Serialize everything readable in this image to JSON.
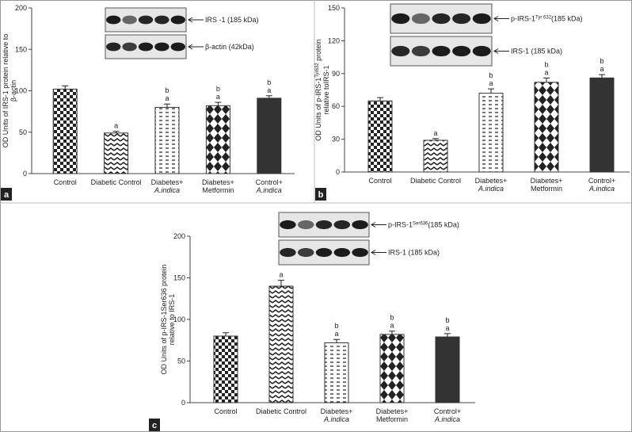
{
  "chart_data": [
    {
      "type": "bar",
      "panel": "a",
      "ylabel": [
        [
          {
            "text": "OD Units of IRS-1 protein relative to"
          }
        ],
        [
          {
            "text": "β-actin"
          }
        ]
      ],
      "categories": [
        [
          "Control"
        ],
        [
          "Diabetic Control"
        ],
        [
          "Diabetes+",
          "A.indica"
        ],
        [
          "Diabetes+",
          "Metformin"
        ],
        [
          "Control+",
          "A.indica"
        ]
      ],
      "values": [
        102,
        49,
        80,
        82,
        91
      ],
      "errors": [
        4,
        2,
        4,
        4,
        3
      ],
      "annotations": [
        null,
        [
          "a"
        ],
        [
          "b",
          "a"
        ],
        [
          "b",
          "a"
        ],
        [
          "b",
          "a"
        ]
      ],
      "fills": [
        "checker",
        "zigzag",
        "dashes",
        "diamonds",
        "solid"
      ],
      "color": "#333333",
      "ylim": [
        0,
        200
      ],
      "yticks": [
        0,
        50,
        100,
        150,
        200
      ],
      "blots": [
        [
          {
            "text": "IRS -1 (185 kDa)"
          }
        ],
        [
          {
            "text": "β-actin (42kDa)"
          }
        ]
      ]
    },
    {
      "type": "bar",
      "panel": "b",
      "ylabel": [
        [
          {
            "text": "OD Units of p-IRS-1"
          },
          {
            "text": "Tyr632",
            "sup": true
          },
          {
            "text": " protein"
          }
        ],
        [
          {
            "text": "relative toIRS-1"
          }
        ]
      ],
      "categories": [
        [
          "Control"
        ],
        [
          "Diabetic Control"
        ],
        [
          "Diabetes+",
          "A.indica"
        ],
        [
          "Diabetes+",
          "Metformin"
        ],
        [
          "Control+",
          "A.indica"
        ]
      ],
      "values": [
        65,
        29,
        72,
        82,
        86
      ],
      "errors": [
        3,
        1.5,
        4,
        4,
        3
      ],
      "annotations": [
        null,
        [
          "a"
        ],
        [
          "b",
          "a"
        ],
        [
          "b",
          "a"
        ],
        [
          "b",
          "a"
        ]
      ],
      "fills": [
        "checker",
        "zigzag",
        "dashes",
        "diamonds",
        "solid"
      ],
      "color": "#333333",
      "ylim": [
        0,
        150
      ],
      "yticks": [
        0,
        30,
        60,
        90,
        120,
        150
      ],
      "blots": [
        [
          {
            "text": "p-IRS-1"
          },
          {
            "text": "Tyr 632",
            "sup": true
          },
          {
            "text": "(185 kDa)"
          }
        ],
        [
          {
            "text": "IRS-1 (185 kDa)"
          }
        ]
      ]
    },
    {
      "type": "bar",
      "panel": "c",
      "ylabel": [
        [
          {
            "text": "OD Units of p-IRS-1Ser636 protein"
          }
        ],
        [
          {
            "text": "relative to IRS-1"
          }
        ]
      ],
      "categories": [
        [
          "Control"
        ],
        [
          "Diabetic Control"
        ],
        [
          "Diabetes+",
          "A.indica"
        ],
        [
          "Diabetes+",
          "Metformin"
        ],
        [
          "Control+",
          "A.indica"
        ]
      ],
      "values": [
        80,
        140,
        72,
        82,
        79
      ],
      "errors": [
        4,
        7,
        4,
        4,
        4
      ],
      "annotations": [
        null,
        [
          "a"
        ],
        [
          "b",
          "a"
        ],
        [
          "b",
          "a"
        ],
        [
          "b",
          "a"
        ]
      ],
      "fills": [
        "checker",
        "zigzag",
        "dashes",
        "diamonds",
        "solid"
      ],
      "color": "#333333",
      "ylim": [
        0,
        200
      ],
      "yticks": [
        0,
        50,
        100,
        150,
        200
      ],
      "blots": [
        [
          {
            "text": "p-IRS-1"
          },
          {
            "text": "Ser636",
            "sup": true
          },
          {
            "text": "(185 kDa)"
          }
        ],
        [
          {
            "text": "IRS-1 (185 kDa)"
          }
        ]
      ]
    }
  ]
}
